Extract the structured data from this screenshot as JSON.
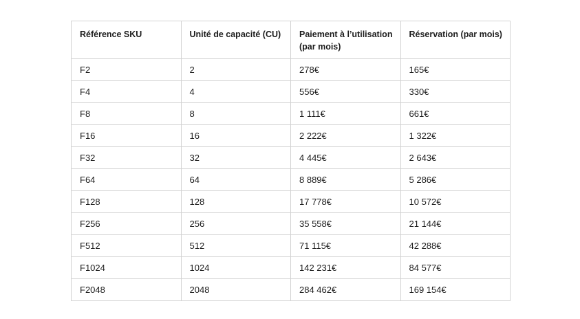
{
  "page": {
    "background": "#ffffff"
  },
  "table": {
    "columns": [
      "Référence SKU",
      "Unité de capacité (CU)",
      "Paiement à l’utilisation (par mois)",
      "Réservation (par mois)"
    ],
    "rows": [
      [
        "F2",
        "2",
        "278€",
        "165€"
      ],
      [
        "F4",
        "4",
        "556€",
        "330€"
      ],
      [
        "F8",
        "8",
        "1 111€",
        "661€"
      ],
      [
        "F16",
        "16",
        "2 222€",
        "1 322€"
      ],
      [
        "F32",
        "32",
        "4 445€",
        "2 643€"
      ],
      [
        "F64",
        "64",
        "8 889€",
        "5 286€"
      ],
      [
        "F128",
        "128",
        "17 778€",
        "10 572€"
      ],
      [
        "F256",
        "256",
        "35 558€",
        "21 144€"
      ],
      [
        "F512",
        "512",
        "71 115€",
        "42 288€"
      ],
      [
        "F1024",
        "1024",
        "142 231€",
        "84 577€"
      ],
      [
        "F2048",
        "2048",
        "284 462€",
        "169 154€"
      ]
    ],
    "style": {
      "border_color": "#d2d2d2",
      "text_color": "#1c1c1c"
    }
  }
}
